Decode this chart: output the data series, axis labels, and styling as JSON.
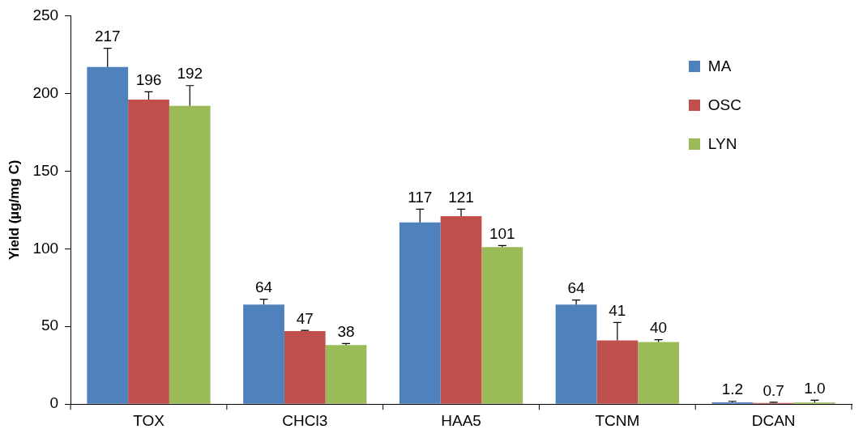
{
  "chart_data": {
    "type": "bar",
    "ylabel": "Yield (µg/mg C)",
    "categories": [
      "TOX",
      "CHCl3",
      "HAA5",
      "TCNM",
      "DCAN"
    ],
    "ylim": [
      0,
      250
    ],
    "yticks": [
      0,
      50,
      100,
      150,
      200,
      250
    ],
    "grid": false,
    "legend": "top right",
    "series": [
      {
        "name": "MA",
        "color": "#4f81bd",
        "values": [
          217,
          64,
          117,
          64,
          1.2
        ],
        "value_labels": [
          "217",
          "64",
          "117",
          "64",
          "1.2"
        ],
        "errors": [
          [
            217,
            229
          ],
          [
            64,
            67.5
          ],
          [
            117,
            125.5
          ],
          [
            64,
            67
          ],
          [
            1.2,
            1.8
          ]
        ]
      },
      {
        "name": "OSC",
        "color": "#c0504d",
        "values": [
          196,
          47,
          121,
          41,
          0.7
        ],
        "value_labels": [
          "196",
          "47",
          "121",
          "41",
          "0.7"
        ],
        "errors": [
          [
            196,
            201
          ],
          [
            47,
            47.5
          ],
          [
            121,
            125.5
          ],
          [
            41,
            52.5
          ],
          [
            0.7,
            1.2
          ]
        ]
      },
      {
        "name": "LYN",
        "color": "#9bbb59",
        "values": [
          192,
          38,
          101,
          40,
          1.0
        ],
        "value_labels": [
          "192",
          "38",
          "101",
          "40",
          "1.0"
        ],
        "errors": [
          [
            192,
            205
          ],
          [
            38,
            39
          ],
          [
            101,
            102
          ],
          [
            40,
            41.5
          ],
          [
            1.0,
            2.5
          ]
        ]
      }
    ]
  }
}
